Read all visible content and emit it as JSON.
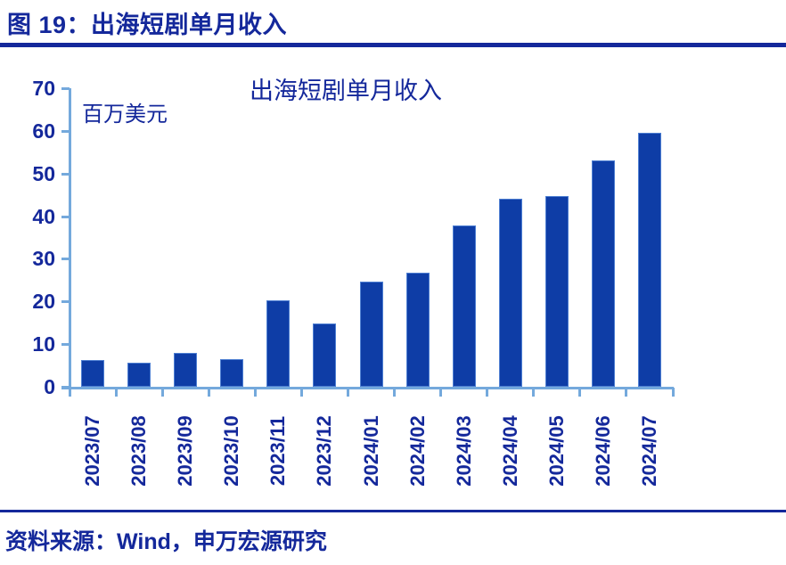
{
  "figure": {
    "title": "图 19：出海短剧单月收入",
    "source_note": "资料来源：Wind，申万宏源研究"
  },
  "chart_data": {
    "type": "bar",
    "title": "出海短剧单月收入",
    "ylabel": "百万美元",
    "xlabel": "",
    "categories": [
      "2023/07",
      "2023/08",
      "2023/09",
      "2023/10",
      "2023/11",
      "2023/12",
      "2024/01",
      "2024/02",
      "2024/03",
      "2024/04",
      "2024/05",
      "2024/06",
      "2024/07"
    ],
    "values": [
      6.3,
      5.6,
      8.0,
      6.5,
      20.2,
      14.8,
      24.7,
      26.7,
      37.9,
      44.0,
      44.7,
      53.0,
      59.6
    ],
    "ylim": [
      0,
      70
    ],
    "ytick_step": 10,
    "grid": false,
    "legend": "none",
    "colors": {
      "bar_fill": "#0e3da6",
      "bar_border": "#4e7fd2",
      "axis": "#74a9dc",
      "text": "#14289b"
    }
  }
}
